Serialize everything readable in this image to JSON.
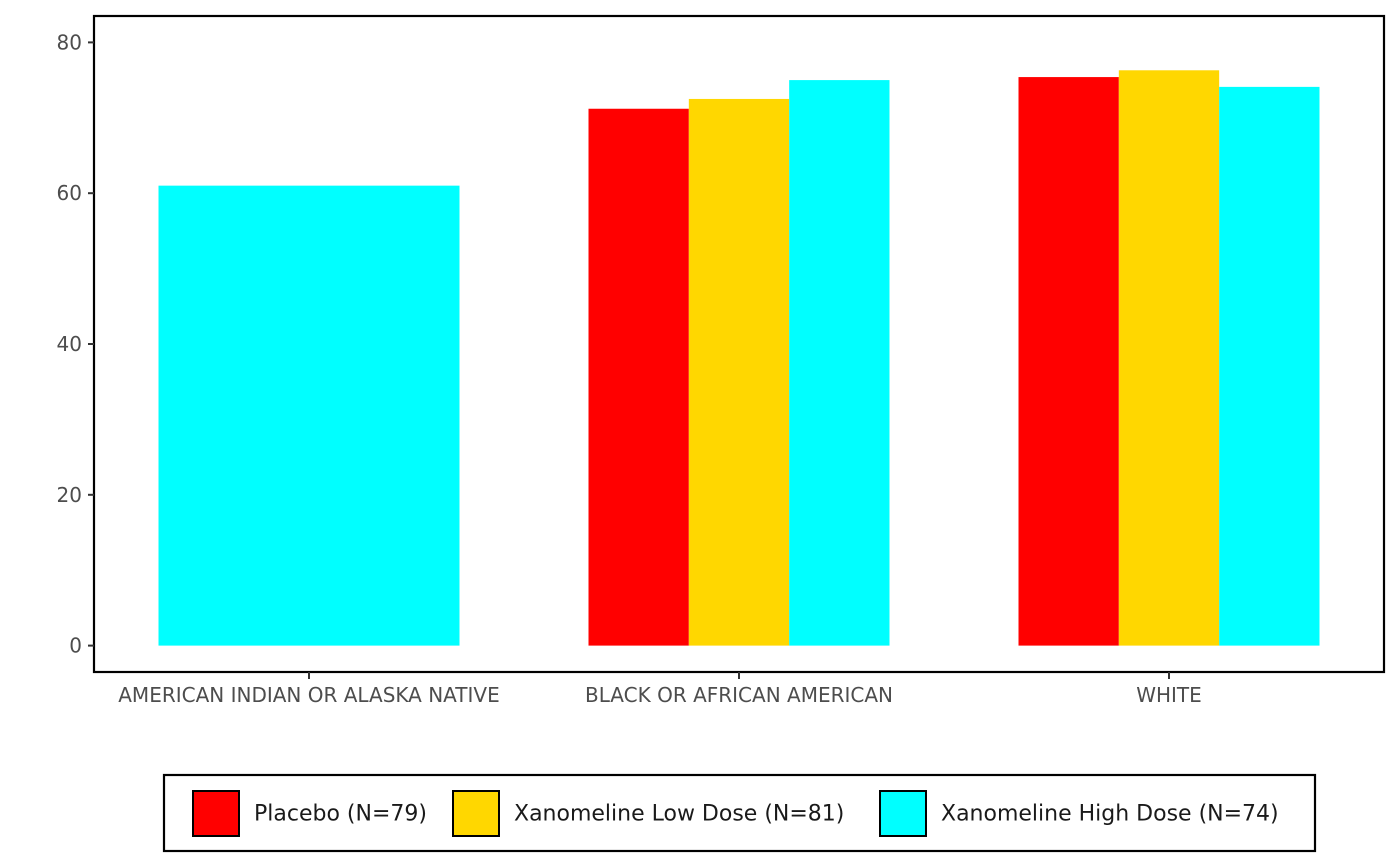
{
  "chart_data": {
    "type": "bar",
    "title": "",
    "xlabel": "",
    "ylabel": "",
    "categories": [
      "AMERICAN INDIAN OR ALASKA NATIVE",
      "BLACK OR AFRICAN AMERICAN",
      "WHITE"
    ],
    "series": [
      {
        "name": "Placebo (N=79)",
        "color": "#ff0000",
        "values": [
          null,
          71.2,
          75.4
        ]
      },
      {
        "name": "Xanomeline Low Dose (N=81)",
        "color": "#ffd700",
        "values": [
          null,
          72.5,
          76.3
        ]
      },
      {
        "name": "Xanomeline High Dose (N=74)",
        "color": "#00ffff",
        "values": [
          61.0,
          75.0,
          74.1
        ]
      }
    ],
    "yticks": [
      "0",
      "20",
      "40",
      "60",
      "80"
    ],
    "ylim": [
      -3.5,
      83.5
    ],
    "grid": false,
    "legend_position": "bottom"
  }
}
